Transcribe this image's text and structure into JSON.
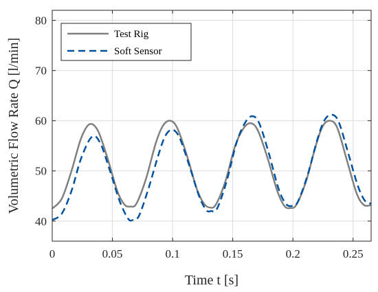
{
  "chart_data": {
    "type": "line",
    "xlabel": "Time t [s]",
    "ylabel": "Volumetric Flow Rate Q [l/min]",
    "xlim": [
      0,
      0.265
    ],
    "ylim": [
      36,
      82
    ],
    "xticks": [
      0,
      0.05,
      0.1,
      0.15,
      0.2,
      0.25
    ],
    "xtick_labels": [
      "0",
      "0.05",
      "0.1",
      "0.15",
      "0.2",
      "0.25"
    ],
    "yticks": [
      40,
      50,
      60,
      70,
      80
    ],
    "ytick_labels": [
      "40",
      "50",
      "60",
      "70",
      "80"
    ],
    "grid": true,
    "legend_position": "top-left",
    "series": [
      {
        "name": "Test Rig",
        "color": "#808080",
        "dash": "solid",
        "x": [
          0,
          0.008,
          0.016,
          0.024,
          0.031,
          0.038,
          0.046,
          0.054,
          0.06,
          0.065,
          0.07,
          0.078,
          0.086,
          0.092,
          0.098,
          0.104,
          0.112,
          0.12,
          0.126,
          0.131,
          0.136,
          0.144,
          0.152,
          0.159,
          0.165,
          0.171,
          0.179,
          0.187,
          0.193,
          0.198,
          0.203,
          0.211,
          0.219,
          0.225,
          0.231,
          0.237,
          0.245,
          0.253,
          0.259,
          0.265
        ],
        "y": [
          42.5,
          44.5,
          50.0,
          56.5,
          59.3,
          58.0,
          52.5,
          46.0,
          43.3,
          42.9,
          43.5,
          48.5,
          55.5,
          59.0,
          60.0,
          58.5,
          53.0,
          46.5,
          43.5,
          42.7,
          43.3,
          48.0,
          55.0,
          58.5,
          59.5,
          58.0,
          52.5,
          46.0,
          43.0,
          42.6,
          43.3,
          48.0,
          55.0,
          59.0,
          60.0,
          58.5,
          52.0,
          45.5,
          43.2,
          43.2
        ]
      },
      {
        "name": "Soft Sensor",
        "color": "#00519e",
        "dash": "dashed",
        "x": [
          0,
          0.008,
          0.016,
          0.024,
          0.033,
          0.04,
          0.048,
          0.056,
          0.063,
          0.067,
          0.072,
          0.08,
          0.088,
          0.094,
          0.1,
          0.106,
          0.114,
          0.122,
          0.128,
          0.132,
          0.137,
          0.145,
          0.153,
          0.16,
          0.166,
          0.172,
          0.18,
          0.188,
          0.194,
          0.199,
          0.204,
          0.212,
          0.22,
          0.226,
          0.232,
          0.238,
          0.246,
          0.254,
          0.26,
          0.265
        ],
        "y": [
          40.2,
          41.5,
          46.0,
          52.5,
          56.8,
          55.5,
          50.0,
          44.0,
          40.5,
          40.2,
          41.0,
          46.5,
          53.0,
          57.0,
          58.2,
          56.5,
          51.0,
          45.0,
          42.2,
          42.0,
          42.5,
          48.0,
          55.5,
          59.5,
          60.9,
          59.5,
          53.5,
          46.5,
          43.5,
          43.0,
          43.8,
          49.0,
          56.0,
          60.0,
          61.2,
          59.8,
          53.5,
          47.0,
          44.0,
          43.5
        ]
      }
    ]
  }
}
